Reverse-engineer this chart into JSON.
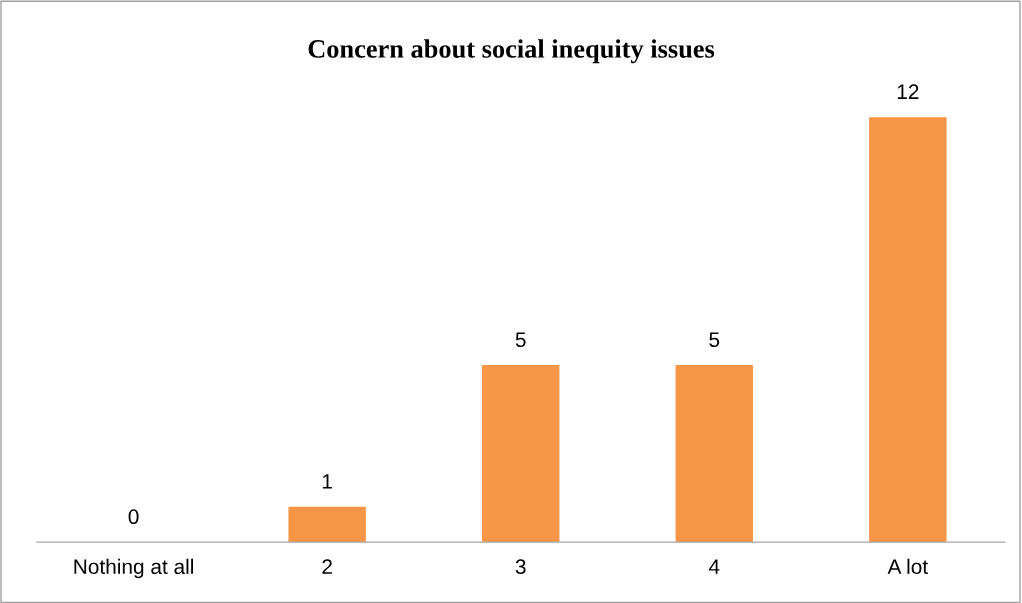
{
  "chart_data": {
    "type": "bar",
    "title": "Concern about social inequity issues",
    "categories": [
      "Nothing at all",
      "2",
      "3",
      "4",
      "A lot"
    ],
    "values": [
      0,
      1,
      5,
      5,
      12
    ],
    "color": "#f79646",
    "data_labels": true,
    "grid": false,
    "legend": false
  }
}
